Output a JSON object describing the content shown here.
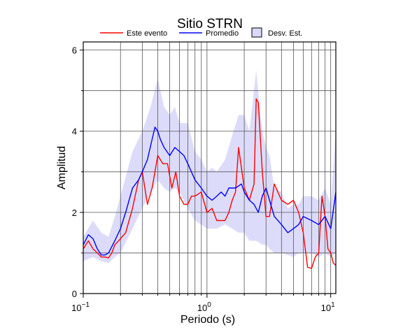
{
  "chart_data": {
    "type": "line",
    "title": "Sitio STRN",
    "xlabel": "Periodo (s)",
    "ylabel": "Amplitud",
    "x_scale": "log",
    "xlim": [
      0.1,
      11
    ],
    "ylim": [
      0,
      6.2
    ],
    "x_ticks": [
      {
        "base": "10",
        "exp": "−1",
        "value": 0.1
      },
      {
        "base": "10",
        "exp": "0",
        "value": 1
      },
      {
        "base": "10",
        "exp": "1",
        "value": 10
      }
    ],
    "y_ticks": [
      {
        "label": "0",
        "value": 0
      },
      {
        "label": "2",
        "value": 2
      },
      {
        "label": "4",
        "value": 4
      },
      {
        "label": "6",
        "value": 6
      }
    ],
    "grid": true,
    "legend": {
      "placement": "top-center",
      "entries": [
        {
          "label": "Este evento",
          "color": "#ff0000",
          "kind": "line"
        },
        {
          "label": "Promedio",
          "color": "#0000ff",
          "kind": "line"
        },
        {
          "label": "Desv. Est.",
          "color": "#d9d9fa",
          "kind": "box"
        }
      ]
    },
    "colors": {
      "event": "#ff0000",
      "mean": "#0000ff",
      "band": "#dcdcfa"
    },
    "series": [
      {
        "name": "Este evento",
        "x": [
          0.1,
          0.11,
          0.12,
          0.13,
          0.14,
          0.15,
          0.16,
          0.17,
          0.18,
          0.2,
          0.22,
          0.25,
          0.28,
          0.3,
          0.33,
          0.36,
          0.4,
          0.44,
          0.48,
          0.52,
          0.56,
          0.6,
          0.65,
          0.7,
          0.75,
          0.8,
          0.9,
          1.0,
          1.1,
          1.2,
          1.3,
          1.4,
          1.5,
          1.6,
          1.7,
          1.8,
          2.0,
          2.2,
          2.4,
          2.5,
          2.6,
          2.8,
          3.0,
          3.2,
          3.5,
          4.0,
          4.5,
          5.0,
          5.5,
          6.0,
          6.5,
          7.0,
          7.5,
          8.0,
          8.5,
          9.0,
          9.5,
          10.0,
          10.5,
          11.0
        ],
        "values": [
          1.1,
          1.3,
          1.1,
          1.0,
          0.9,
          0.9,
          0.88,
          1.0,
          1.2,
          1.35,
          1.5,
          2.1,
          2.8,
          3.0,
          2.2,
          2.6,
          3.4,
          3.2,
          3.2,
          2.6,
          3.0,
          2.4,
          2.2,
          2.2,
          2.4,
          2.4,
          2.5,
          2.0,
          2.1,
          1.8,
          1.8,
          1.8,
          2.0,
          2.3,
          2.5,
          3.6,
          2.6,
          2.3,
          2.7,
          4.8,
          4.7,
          3.0,
          1.9,
          1.9,
          2.7,
          2.3,
          2.2,
          2.3,
          2.0,
          1.5,
          0.65,
          0.62,
          0.9,
          1.0,
          2.4,
          1.9,
          1.1,
          1.0,
          0.75,
          0.7
        ]
      },
      {
        "name": "Promedio",
        "x": [
          0.1,
          0.11,
          0.12,
          0.13,
          0.14,
          0.15,
          0.16,
          0.18,
          0.2,
          0.22,
          0.25,
          0.28,
          0.3,
          0.33,
          0.36,
          0.38,
          0.4,
          0.42,
          0.45,
          0.5,
          0.55,
          0.6,
          0.65,
          0.7,
          0.8,
          0.9,
          1.0,
          1.1,
          1.2,
          1.3,
          1.4,
          1.5,
          1.7,
          1.9,
          2.0,
          2.2,
          2.4,
          2.6,
          2.8,
          3.0,
          3.2,
          3.5,
          4.0,
          4.5,
          5.0,
          5.5,
          6.0,
          7.0,
          8.0,
          9.0,
          10.0,
          11.0
        ],
        "values": [
          1.2,
          1.45,
          1.35,
          1.1,
          0.95,
          0.95,
          1.0,
          1.3,
          1.6,
          2.0,
          2.6,
          2.8,
          3.0,
          3.3,
          3.8,
          4.1,
          4.0,
          3.8,
          3.6,
          3.4,
          3.6,
          3.5,
          3.4,
          3.2,
          2.8,
          2.6,
          2.4,
          2.3,
          2.4,
          2.5,
          2.4,
          2.6,
          2.6,
          2.7,
          2.5,
          2.3,
          2.2,
          2.0,
          2.4,
          2.6,
          2.3,
          1.9,
          1.7,
          1.5,
          1.6,
          1.7,
          1.9,
          1.8,
          1.7,
          1.9,
          1.6,
          2.5
        ]
      }
    ],
    "band": {
      "name": "Desv. Est.",
      "x": [
        0.1,
        0.12,
        0.14,
        0.16,
        0.18,
        0.2,
        0.25,
        0.3,
        0.35,
        0.4,
        0.45,
        0.5,
        0.55,
        0.6,
        0.7,
        0.8,
        0.9,
        1.0,
        1.1,
        1.2,
        1.4,
        1.6,
        1.8,
        2.0,
        2.2,
        2.5,
        2.8,
        3.0,
        3.2,
        3.5,
        4.0,
        4.5,
        5.0,
        5.5,
        6.0,
        7.0,
        8.0,
        9.0,
        10.0,
        11.0
      ],
      "upper": [
        1.4,
        1.8,
        1.5,
        1.4,
        1.9,
        2.4,
        3.5,
        4.0,
        4.6,
        5.3,
        4.6,
        4.4,
        4.6,
        4.2,
        4.2,
        3.5,
        3.3,
        3.0,
        3.1,
        3.0,
        3.3,
        3.9,
        4.4,
        4.4,
        4.0,
        5.5,
        4.0,
        3.6,
        3.4,
        2.6,
        2.5,
        2.1,
        2.2,
        2.2,
        2.4,
        2.4,
        2.3,
        2.6,
        2.2,
        4.0
      ],
      "lower": [
        0.8,
        0.9,
        0.8,
        0.75,
        0.9,
        1.0,
        1.6,
        2.1,
        2.5,
        2.8,
        2.6,
        2.5,
        2.6,
        2.5,
        2.1,
        1.8,
        1.7,
        1.6,
        1.6,
        1.6,
        1.7,
        1.6,
        1.5,
        1.5,
        1.3,
        1.3,
        1.2,
        1.2,
        1.1,
        1.0,
        1.0,
        0.95,
        0.9,
        1.0,
        1.0,
        1.0,
        0.9,
        1.0,
        0.9,
        1.0
      ]
    }
  }
}
